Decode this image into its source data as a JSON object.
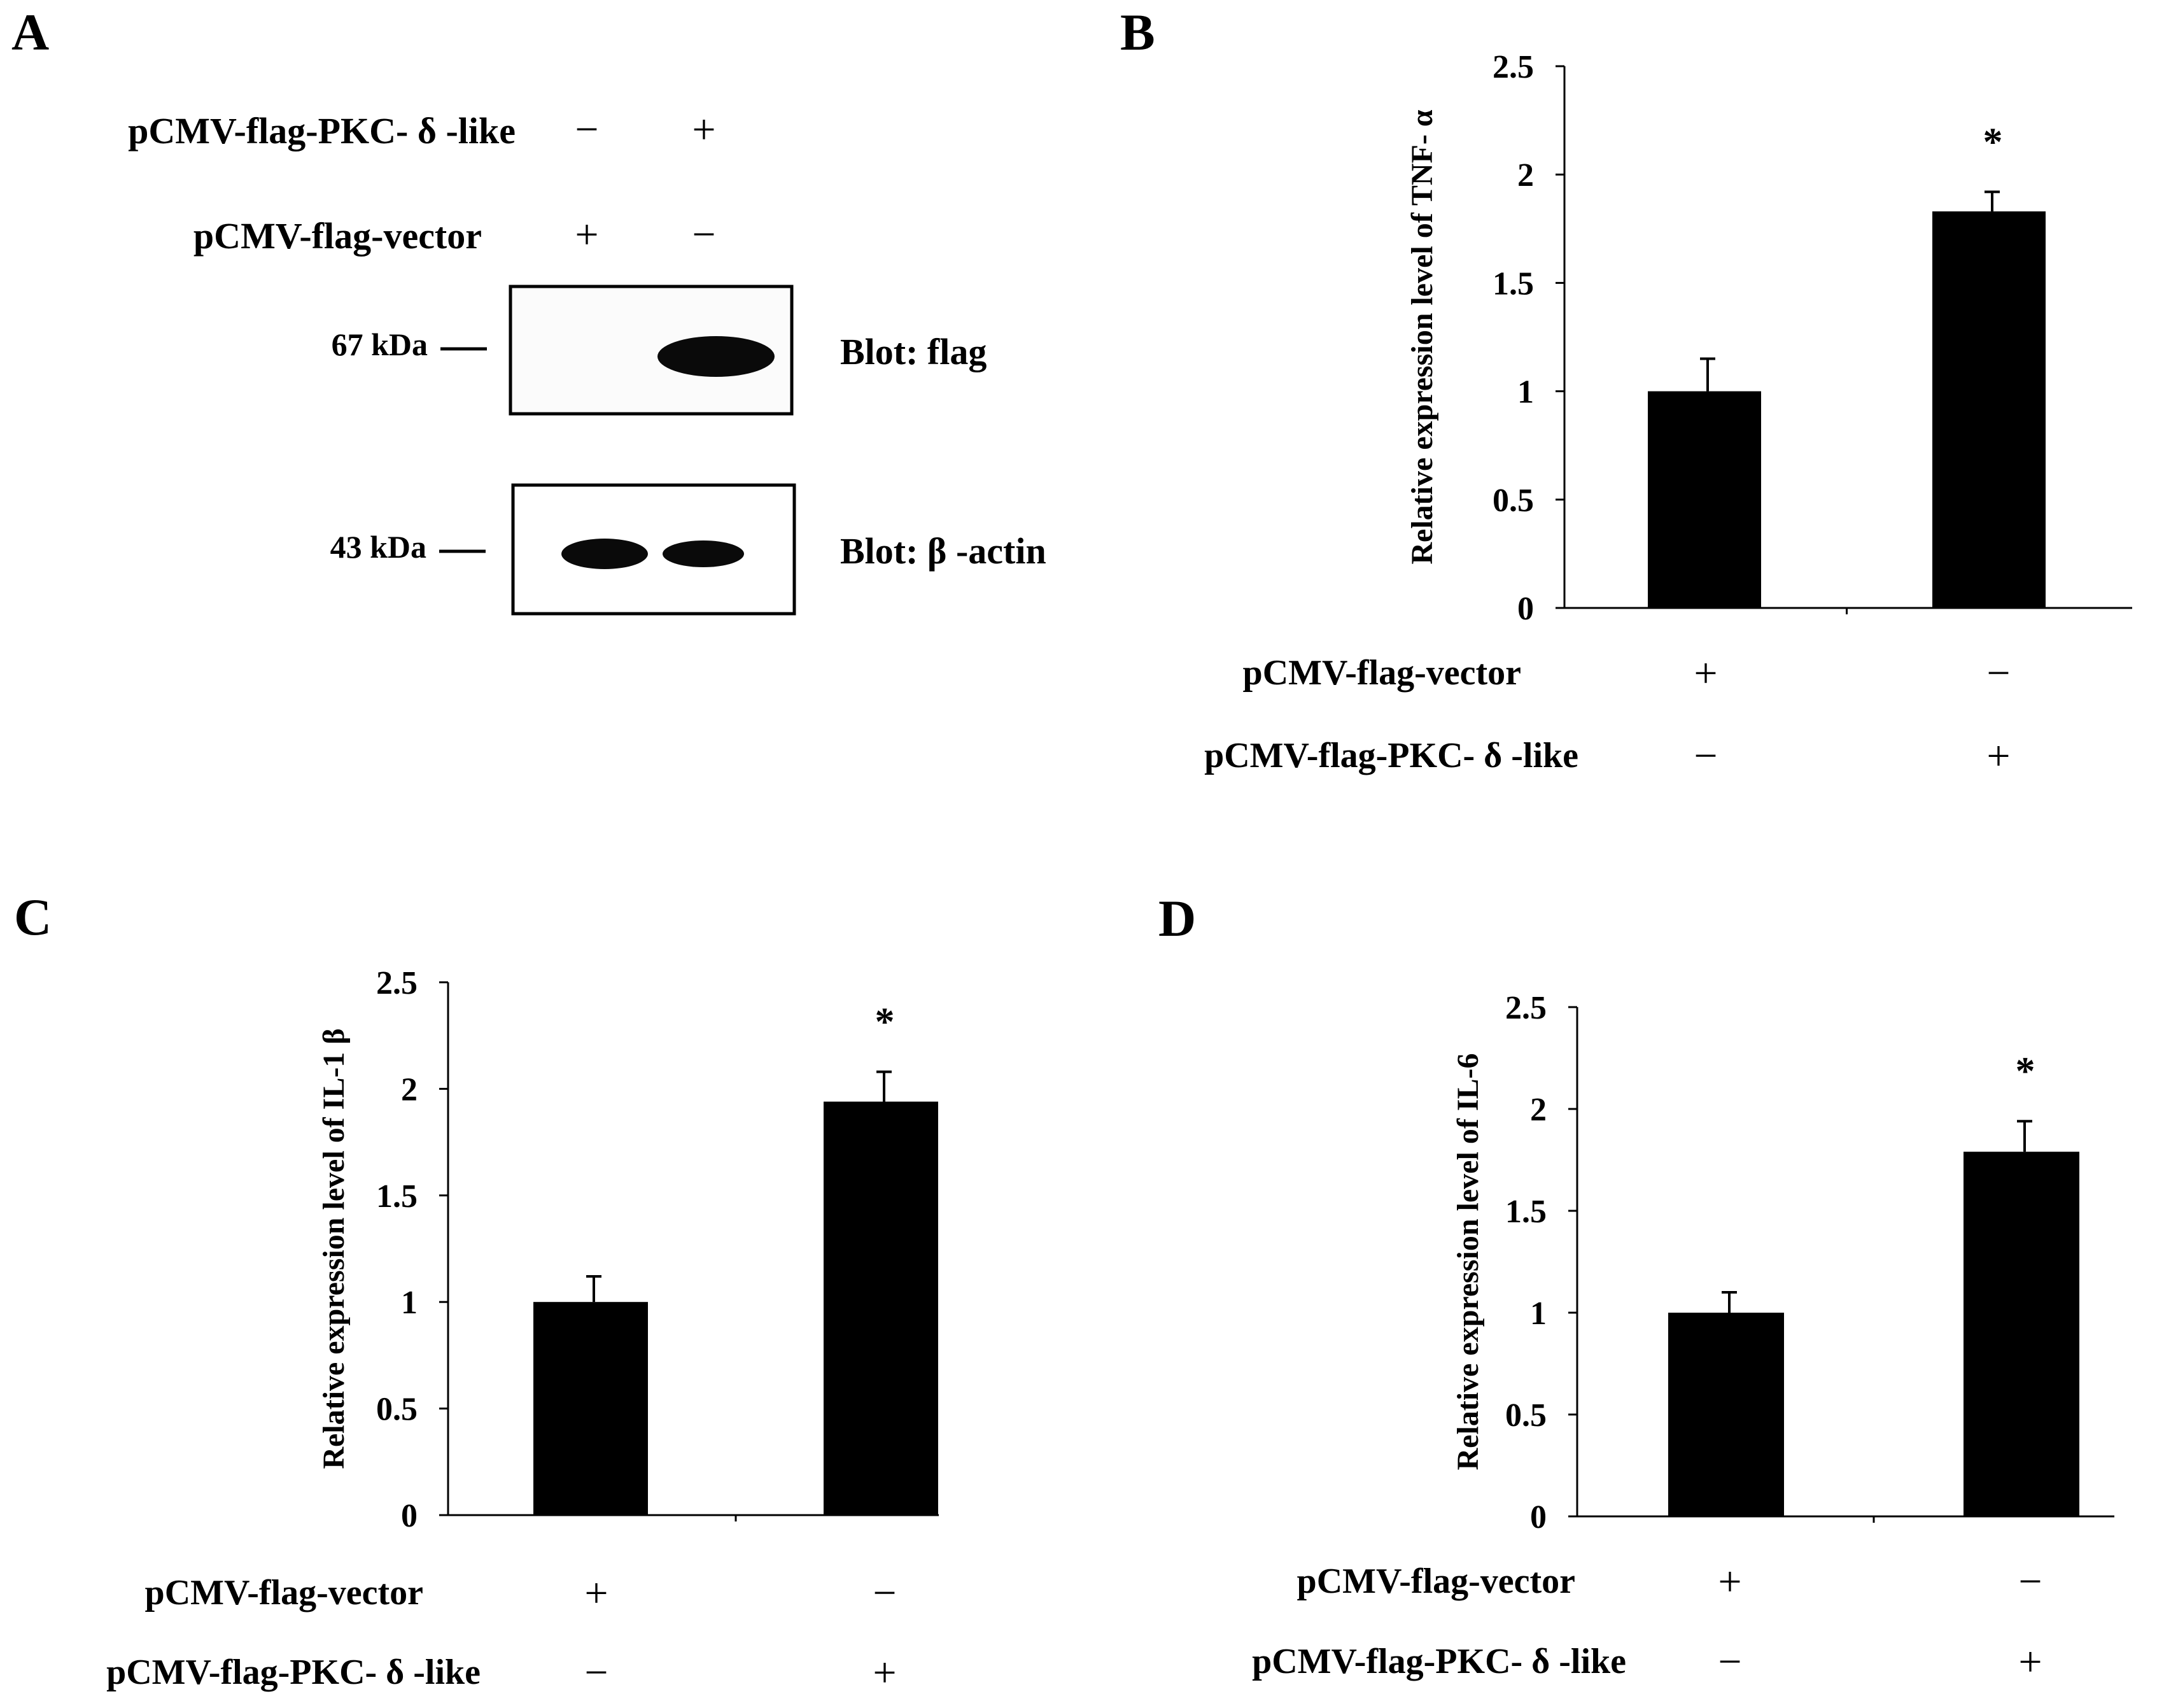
{
  "panel_a": {
    "letter": "A",
    "row_pkc_label": "pCMV-flag-PKC- δ -like",
    "row_vector_label": "pCMV-flag-vector",
    "row_pkc_signs": [
      "−",
      "+"
    ],
    "row_vector_signs": [
      "+",
      "−"
    ],
    "flag_blot": {
      "marker": "67 kDa",
      "label": "Blot: flag"
    },
    "actin_blot": {
      "marker": "43 kDa",
      "label": "Blot:  β -actin"
    }
  },
  "chart_data": [
    {
      "panel": "B",
      "type": "bar",
      "categories": [
        "pCMV-flag-vector +",
        "pCMV-flag-PKC-δ-like +"
      ],
      "values": [
        1.0,
        1.83
      ],
      "errors": [
        0.15,
        0.09
      ],
      "significance": [
        "",
        "*"
      ],
      "ylabel": "Relative expression level of TNF- α",
      "ylim": [
        0,
        2.5
      ],
      "yticks": [
        "0",
        "0.5",
        "1",
        "1.5",
        "2",
        "2.5"
      ],
      "rows": [
        {
          "label": "pCMV-flag-vector",
          "signs": [
            "+",
            "−"
          ]
        },
        {
          "label": "pCMV-flag-PKC- δ -like",
          "signs": [
            "−",
            "+"
          ]
        }
      ]
    },
    {
      "panel": "C",
      "type": "bar",
      "categories": [
        "pCMV-flag-vector +",
        "pCMV-flag-PKC-δ-like +"
      ],
      "values": [
        1.0,
        1.94
      ],
      "errors": [
        0.12,
        0.14
      ],
      "significance": [
        "",
        "*"
      ],
      "ylabel": "Relative expression level of IL-1 β",
      "ylim": [
        0,
        2.5
      ],
      "yticks": [
        "0",
        "0.5",
        "1",
        "1.5",
        "2",
        "2.5"
      ],
      "rows": [
        {
          "label": "pCMV-flag-vector",
          "signs": [
            "+",
            "−"
          ]
        },
        {
          "label": "pCMV-flag-PKC- δ -like",
          "signs": [
            "−",
            "+"
          ]
        }
      ]
    },
    {
      "panel": "D",
      "type": "bar",
      "categories": [
        "pCMV-flag-vector +",
        "pCMV-flag-PKC-δ-like +"
      ],
      "values": [
        1.0,
        1.79
      ],
      "errors": [
        0.1,
        0.15
      ],
      "significance": [
        "",
        "*"
      ],
      "ylabel": "Relative expression level of IL-6",
      "ylim": [
        0,
        2.5
      ],
      "yticks": [
        "0",
        "0.5",
        "1",
        "1.5",
        "2",
        "2.5"
      ],
      "rows": [
        {
          "label": "pCMV-flag-vector",
          "signs": [
            "+",
            "−"
          ]
        },
        {
          "label": "pCMV-flag-PKC- δ -like",
          "signs": [
            "−",
            "+"
          ]
        }
      ]
    }
  ]
}
